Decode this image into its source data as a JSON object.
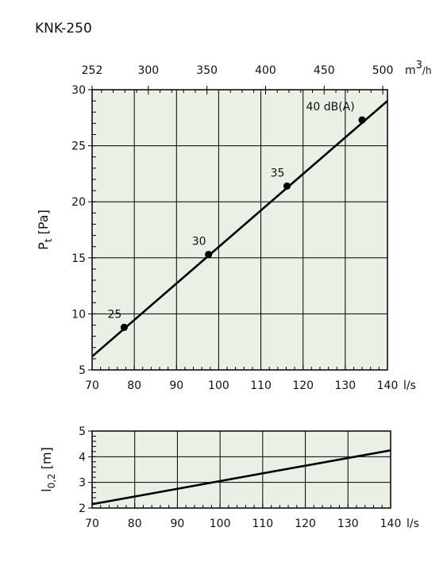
{
  "title": "KNK-250",
  "chart_data": [
    {
      "type": "line",
      "x_unit": "l/s",
      "x_range": [
        70,
        140
      ],
      "x_ticks": [
        70,
        80,
        90,
        100,
        110,
        120,
        130,
        140
      ],
      "ylabel_base": "P",
      "ylabel_sub": "t",
      "ylabel_unit": "[Pa]",
      "y_range": [
        5,
        30
      ],
      "y_ticks": [
        5,
        10,
        15,
        20,
        25,
        30
      ],
      "top_axis_ticks": [
        252,
        300,
        350,
        400,
        450,
        500
      ],
      "top_axis_unit_base": "m",
      "top_axis_unit_sup": "3",
      "top_axis_unit_tail": "/h",
      "grid": true,
      "background": "#e9f1e6",
      "line_color": "#000000",
      "series": [
        {
          "x": [
            70,
            140
          ],
          "y": [
            6.2,
            29.0
          ]
        }
      ],
      "points": [
        {
          "x": 77.6,
          "y": 8.8,
          "label": "25"
        },
        {
          "x": 97.6,
          "y": 15.3,
          "label": "30"
        },
        {
          "x": 116.2,
          "y": 21.4,
          "label": "35"
        },
        {
          "x": 134.0,
          "y": 27.3,
          "label": "40 dB(A)"
        }
      ]
    },
    {
      "type": "line",
      "x_unit": "l/s",
      "x_range": [
        70,
        140
      ],
      "x_ticks": [
        70,
        80,
        90,
        100,
        110,
        120,
        130,
        140
      ],
      "ylabel_base": "l",
      "ylabel_sub": "0,2",
      "ylabel_unit": "[m]",
      "y_range": [
        2,
        5
      ],
      "y_ticks": [
        2,
        3,
        4,
        5
      ],
      "grid": true,
      "background": "#e9f1e6",
      "line_color": "#000000",
      "series": [
        {
          "x": [
            70,
            140
          ],
          "y": [
            2.15,
            4.25
          ]
        }
      ]
    }
  ]
}
